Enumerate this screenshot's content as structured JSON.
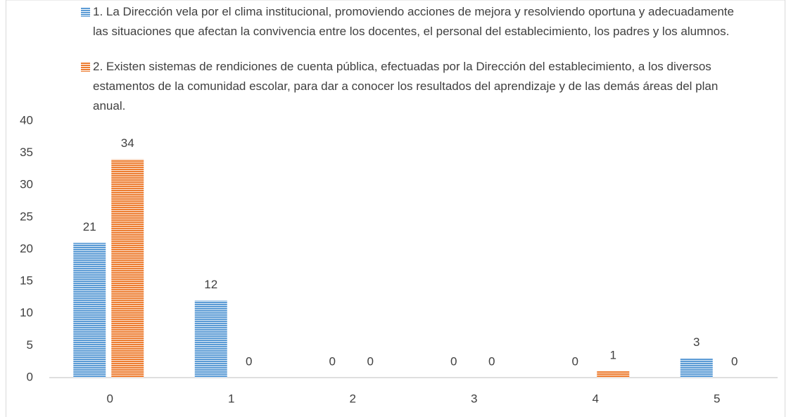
{
  "chart_data": {
    "type": "bar",
    "categories": [
      "0",
      "1",
      "2",
      "3",
      "4",
      "5"
    ],
    "series": [
      {
        "name": "1. La Dirección vela por el clima institucional, promoviendo acciones de mejora y resolviendo oportuna y adecuadamente las situaciones que afectan la convivencia entre los docentes, el personal del establecimiento, los padres y los alumnos.",
        "color": "#5b9bd5",
        "values": [
          21,
          12,
          0,
          0,
          0,
          3
        ]
      },
      {
        "name": "2. Existen sistemas de rendiciones de cuenta pública, efectuadas por la Dirección del establecimiento, a los diversos estamentos de la comunidad escolar, para dar a conocer los resultados del aprendizaje y de las demás áreas del plan anual.",
        "color": "#ed7d31",
        "values": [
          34,
          0,
          0,
          0,
          1,
          0
        ]
      }
    ],
    "ylim": [
      0,
      40
    ],
    "yticks": [
      0,
      5,
      10,
      15,
      20,
      25,
      30,
      35,
      40
    ],
    "legend": "top",
    "grid": false
  }
}
